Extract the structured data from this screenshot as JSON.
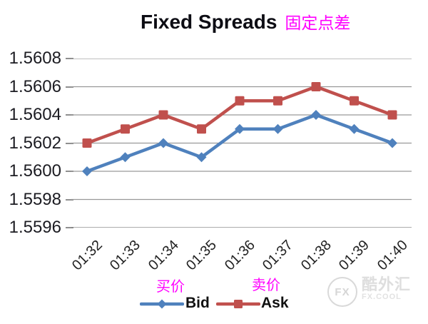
{
  "title": {
    "en": "Fixed Spreads",
    "zh": "固定点差"
  },
  "colors": {
    "bid_blue": "#4F81BD",
    "ask_red": "#C0504D",
    "gridline": "#999999",
    "axis_line": "#7a7a7a",
    "axis_text": "#1c1c22",
    "magenta": "#FF00FF",
    "watermark_gray": "#dedede"
  },
  "chart_data": {
    "type": "line",
    "title": "Fixed Spreads 固定点差",
    "xlabel": "",
    "ylabel": "",
    "categories": [
      "01:32",
      "01:33",
      "01:34",
      "01:35",
      "01:36",
      "01:37",
      "01:38",
      "01:39",
      "01:40"
    ],
    "series": [
      {
        "name": "Bid",
        "name_zh": "买价",
        "color": "#4F81BD",
        "marker": "diamond",
        "values": [
          1.56,
          1.5601,
          1.5602,
          1.5601,
          1.5603,
          1.5603,
          1.5604,
          1.5603,
          1.5602
        ]
      },
      {
        "name": "Ask",
        "name_zh": "卖价",
        "color": "#C0504D",
        "marker": "square",
        "values": [
          1.5602,
          1.5603,
          1.5604,
          1.5603,
          1.5605,
          1.5605,
          1.5606,
          1.5605,
          1.5604
        ]
      }
    ],
    "ylim": [
      1.5596,
      1.5608
    ],
    "ytick_step": 0.0002,
    "yticks": [
      "1.5608",
      "1.5606",
      "1.5604",
      "1.5602",
      "1.5600",
      "1.5598",
      "1.5596"
    ],
    "grid": true,
    "legend_position": "bottom"
  },
  "watermark": {
    "circle_text": "FX",
    "brand": "酷外汇",
    "sub": "FX.COOL"
  }
}
